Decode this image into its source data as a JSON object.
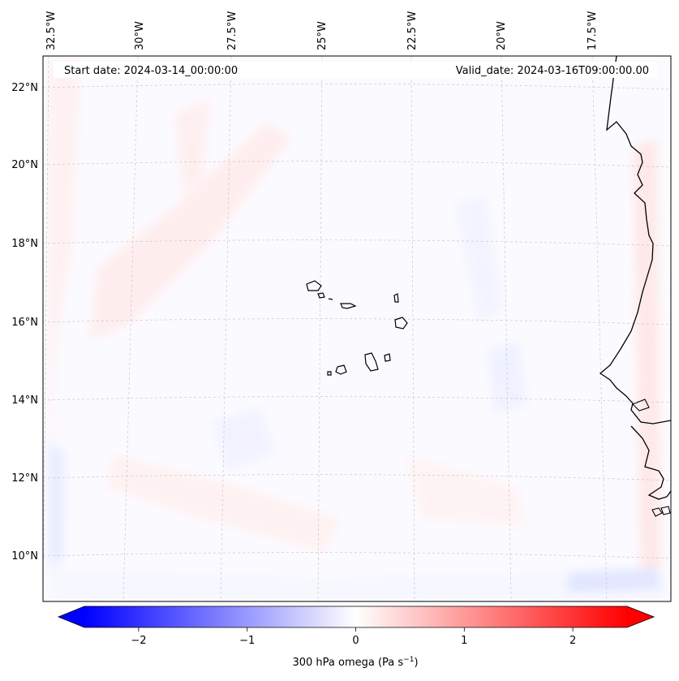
{
  "header": {
    "start_date": "Start date: 2024-03-14_00:00:00",
    "valid_date": "Valid_date: 2024-03-16T09:00:00.00"
  },
  "longitude_labels": [
    "32.5°W",
    "30°W",
    "27.5°W",
    "25°W",
    "22.5°W",
    "20°W",
    "17.5°W"
  ],
  "latitude_labels": [
    "22°N",
    "20°N",
    "18°N",
    "16°N",
    "14°N",
    "12°N",
    "10°N"
  ],
  "colorbar": {
    "ticks": [
      "−2",
      "−1",
      "0",
      "1",
      "2"
    ],
    "tick_values": [
      -2,
      -1,
      0,
      1,
      2
    ],
    "range": [
      -2.5,
      2.5
    ],
    "label": "300 hPa omega (Pa s",
    "label_exponent": "−1",
    "label_close": ")",
    "colormap": "bwr",
    "color_min": "#0000ff",
    "color_mid": "#ffffff",
    "color_max": "#ff0000"
  },
  "map": {
    "coastline_color": "#000000",
    "gridline_color": "#c8c8c8",
    "field_tint_positive": "#ffe8e8",
    "field_tint_negative": "#e8ecff"
  }
}
